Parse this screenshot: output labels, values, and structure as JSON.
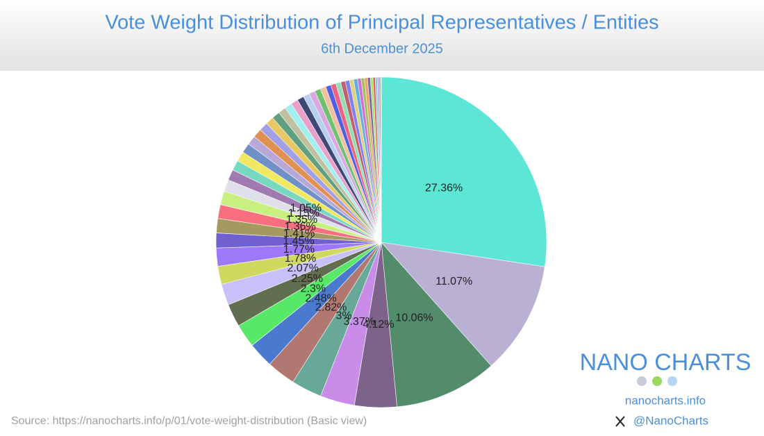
{
  "chart_data": {
    "type": "pie",
    "title": "Vote Weight Distribution of Principal Representatives / Entities",
    "subtitle": "6th December 2025",
    "source": "Source: https://nanocharts.info/p/01/vote-weight-distribution (Basic view)",
    "logo": "NANO CHARTS",
    "website": "nanocharts.info",
    "handle": "@NanoCharts",
    "values": [
      27.36,
      11.07,
      10.06,
      4.12,
      3.37,
      3,
      2.82,
      2.48,
      2.3,
      2.25,
      2.07,
      1.78,
      1.77,
      1.45,
      1.41,
      1.36,
      1.35,
      1.15,
      1.05,
      1.0,
      0.98,
      0.95,
      0.9,
      0.88,
      0.85,
      0.8,
      0.78,
      0.75,
      0.72,
      0.7,
      0.66,
      0.62,
      0.6,
      0.58,
      0.55,
      0.52,
      0.5,
      0.48,
      0.45,
      0.42,
      0.4,
      0.38,
      0.35,
      0.32,
      0.3,
      0.28,
      0.25,
      0.22,
      0.2,
      0.18,
      0.15,
      0.06
    ],
    "value_labels": [
      "27.36%",
      "11.07%",
      "10.06%",
      "4.12%",
      "3.37%",
      "3%",
      "2.82%",
      "2.48%",
      "2.3%",
      "2.25%",
      "2.07%",
      "1.78%",
      "1.77%",
      "1.45%",
      "1.41%",
      "1.36%",
      "1.35%",
      "1.15%",
      "1.05%",
      null,
      null,
      null,
      null,
      null,
      null,
      null,
      null,
      null,
      null,
      null,
      null,
      null,
      null,
      null,
      null,
      null,
      null,
      null,
      null,
      null,
      null,
      null,
      null,
      null,
      null,
      null,
      null,
      null,
      null,
      null,
      null,
      null
    ],
    "colors": [
      "#5ce6d5",
      "#bab0d4",
      "#528c6a",
      "#7d6289",
      "#c98ce8",
      "#68a898",
      "#b07870",
      "#4a7ad0",
      "#58e868",
      "#626e50",
      "#c8c0f8",
      "#d0d860",
      "#9d78f8",
      "#7060d0",
      "#a49a60",
      "#f87080",
      "#c8f080",
      "#e0e0ec",
      "#a07ab0",
      "#78d8c0",
      "#f0e860",
      "#7090c8",
      "#b8a8d8",
      "#e09050",
      "#a0a0e8",
      "#e8c860",
      "#60a080",
      "#c0c0a0",
      "#a0f0f0",
      "#e8a0c8",
      "#404878",
      "#b8d0f0",
      "#d8a8e0",
      "#70c070",
      "#f0c0a0",
      "#5060e0",
      "#f06080",
      "#90e0b0",
      "#c06070",
      "#8080f0",
      "#e0d080",
      "#60b0e0",
      "#d070d0",
      "#a0c060",
      "#f0a070",
      "#7070a0",
      "#b0e070",
      "#e06060",
      "#80d0d0",
      "#c0a0f0",
      "#90a0b0",
      "#e0e060"
    ]
  }
}
